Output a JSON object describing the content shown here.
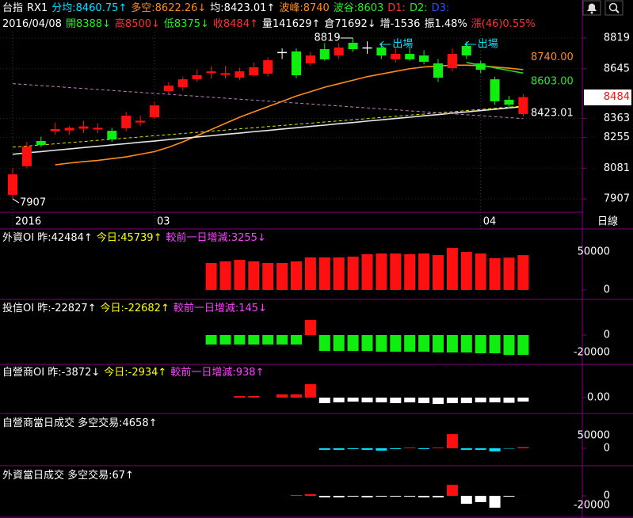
{
  "chart_data": [
    {
      "type": "candlestick",
      "header": [
        [
          {
            "text": "台指",
            "color": "#ffffff"
          },
          {
            "text": "RX1",
            "color": "#ffffff"
          },
          {
            "text": "分均:8460.75↑",
            "color": "#00e5ff"
          },
          {
            "text": "多空:8622.26↓",
            "color": "#ff8c1a"
          },
          {
            "text": "均:8423.01↑",
            "color": "#ffffff"
          },
          {
            "text": "波峰:8740",
            "color": "#ff8c1a"
          },
          {
            "text": "波谷:8603",
            "color": "#22ee22"
          },
          {
            "text": "D1:",
            "color": "#ff3030"
          },
          {
            "text": "D2:",
            "color": "#22ee22"
          },
          {
            "text": "D3:",
            "color": "#3050ff"
          }
        ],
        [
          {
            "text": "2016/04/08",
            "color": "#ffffff"
          },
          {
            "text": "開8388↓",
            "color": "#22ee22"
          },
          {
            "text": "高8500↓",
            "color": "#ff3030"
          },
          {
            "text": "低8375↓",
            "color": "#22ee22"
          },
          {
            "text": "收8484↑",
            "color": "#ff3030"
          },
          {
            "text": "量141629↑",
            "color": "#ffffff"
          },
          {
            "text": "倉71692↓",
            "color": "#ffffff"
          },
          {
            "text": "增-1536",
            "color": "#ffffff"
          },
          {
            "text": "振1.48%",
            "color": "#ffffff"
          },
          {
            "text": "漲(46)0.55%",
            "color": "#ff3030"
          }
        ]
      ],
      "categories": [
        "2016",
        null,
        null,
        null,
        null,
        null,
        null,
        null,
        null,
        null,
        "03",
        null,
        null,
        null,
        null,
        null,
        null,
        null,
        null,
        null,
        null,
        null,
        null,
        null,
        null,
        null,
        null,
        null,
        null,
        null,
        null,
        null,
        null,
        "04",
        null,
        null,
        null
      ],
      "open": [
        7930,
        8092,
        8235,
        8290,
        8295,
        8305,
        8300,
        8293,
        8307,
        8340,
        8370,
        8518,
        8540,
        8585,
        8620,
        8610,
        8594,
        8608,
        8617,
        8738,
        8743,
        8675,
        8756,
        8720,
        8792,
        8765,
        8765,
        8698,
        8729,
        8720,
        8675,
        8648,
        8774,
        8675,
        8585,
        8469,
        8388
      ],
      "high": [
        8081,
        8230,
        8260,
        8340,
        8320,
        8350,
        8335,
        8310,
        8400,
        8380,
        8460,
        8570,
        8600,
        8640,
        8660,
        8660,
        8650,
        8680,
        8710,
        8760,
        8760,
        8740,
        8790,
        8790,
        8819,
        8800,
        8790,
        8760,
        8760,
        8750,
        8700,
        8760,
        8800,
        8690,
        8600,
        8490,
        8500
      ],
      "low": [
        7907,
        8080,
        8200,
        8270,
        8270,
        8280,
        8280,
        8230,
        8290,
        8320,
        8360,
        8500,
        8520,
        8570,
        8590,
        8590,
        8580,
        8600,
        8600,
        8700,
        8590,
        8660,
        8690,
        8700,
        8740,
        8730,
        8700,
        8680,
        8690,
        8670,
        8570,
        8630,
        8700,
        8620,
        8440,
        8420,
        8375
      ],
      "close": [
        8046,
        8204,
        8213,
        8303,
        8310,
        8318,
        8310,
        8244,
        8379,
        8350,
        8437,
        8549,
        8585,
        8608,
        8630,
        8620,
        8630,
        8653,
        8693,
        8740,
        8608,
        8720,
        8698,
        8765,
        8756,
        8766,
        8720,
        8729,
        8698,
        8684,
        8594,
        8729,
        8720,
        8639,
        8460,
        8441,
        8484
      ],
      "up_color": "#ff1010",
      "down_color": "#10ee10",
      "overlays": [
        {
          "color": "#ff8c1a",
          "dashed": false,
          "values": [
            null,
            null,
            null,
            8100,
            8110,
            8118,
            8125,
            8135,
            8145,
            8160,
            8175,
            8200,
            8230,
            8265,
            8300,
            8335,
            8370,
            8400,
            8430,
            8460,
            8490,
            8515,
            8540,
            8560,
            8580,
            8600,
            8615,
            8630,
            8645,
            8655,
            8660,
            8665,
            8665,
            8662,
            8655,
            8648,
            8640
          ]
        },
        {
          "color": "#22dd22",
          "dashed": false,
          "values": [
            null,
            null,
            null,
            null,
            null,
            null,
            null,
            null,
            null,
            null,
            null,
            null,
            null,
            null,
            null,
            null,
            null,
            null,
            null,
            null,
            null,
            null,
            null,
            null,
            null,
            null,
            null,
            null,
            null,
            null,
            null,
            null,
            8680,
            8665,
            8650,
            8635,
            8620
          ]
        },
        {
          "color": "#e8e8e8",
          "dashed": false,
          "values": [
            8160,
            8168,
            8175,
            8183,
            8190,
            8198,
            8205,
            8213,
            8220,
            8228,
            8235,
            8243,
            8250,
            8258,
            8265,
            8273,
            8280,
            8288,
            8295,
            8303,
            8310,
            8318,
            8325,
            8333,
            8340,
            8348,
            8355,
            8363,
            8370,
            8378,
            8385,
            8393,
            8400,
            8408,
            8415,
            8423,
            8430
          ]
        },
        {
          "color": "#e0e000",
          "dashed": true,
          "values": [
            8200,
            8206,
            8213,
            8219,
            8226,
            8232,
            8239,
            8245,
            8252,
            8258,
            8265,
            8271,
            8278,
            8284,
            8291,
            8297,
            8304,
            8310,
            8317,
            8323,
            8330,
            8336,
            8343,
            8349,
            8356,
            8362,
            8369,
            8375,
            8382,
            8388,
            8395,
            8401,
            8408,
            8414,
            8421,
            8427,
            8434
          ]
        },
        {
          "color": "#c080c0",
          "dashed": true,
          "values": [
            8560,
            8555,
            8549,
            8544,
            8538,
            8533,
            8527,
            8522,
            8516,
            8511,
            8505,
            8500,
            8494,
            8489,
            8483,
            8478,
            8472,
            8467,
            8461,
            8456,
            8450,
            8445,
            8439,
            8434,
            8428,
            8423,
            8417,
            8412,
            8406,
            8401,
            8395,
            8390,
            8384,
            8379,
            8373,
            8368,
            8362
          ]
        }
      ],
      "signals": [
        null,
        null,
        null,
        null,
        null,
        null,
        null,
        null,
        null,
        null,
        null,
        null,
        null,
        null,
        null,
        null,
        null,
        null,
        null,
        null,
        null,
        null,
        null,
        null,
        null,
        null,
        "出場",
        null,
        null,
        null,
        null,
        null,
        "出場",
        null,
        null,
        null,
        null
      ],
      "signal_color": "#00e5ff",
      "level_labels": [
        {
          "value": 8740,
          "label": "8740.00",
          "color": "#ff8c1a"
        },
        {
          "value": 8603,
          "label": "8603.00",
          "color": "#22ee22"
        },
        {
          "value": 8423,
          "label": "8423.01",
          "color": "#ffffff"
        }
      ],
      "period": "日線",
      "ylim": [
        7831,
        8855
      ],
      "yticks": [
        8819,
        8645,
        8363,
        8255,
        8081,
        7907
      ],
      "grid": true
    },
    {
      "type": "bar",
      "header": [
        [
          {
            "text": "外資OI 昨:42484↑",
            "color": "#ffffff"
          },
          {
            "text": "今日:45739↑",
            "color": "#ffff00"
          },
          {
            "text": "較前一日增減:3255↓",
            "color": "#ff40ff"
          }
        ]
      ],
      "values": [
        35400,
        37500,
        39600,
        37500,
        35400,
        35400,
        37500,
        42700,
        42700,
        42700,
        43800,
        46900,
        47900,
        47900,
        46900,
        47900,
        45800,
        55200,
        50000,
        47900,
        41700,
        42484,
        45739
      ],
      "up_color": "#ff1010",
      "down_color": "#10ee10",
      "ylim": [
        -12500,
        79200
      ],
      "yticks": [
        50000,
        0
      ]
    },
    {
      "type": "bar",
      "header": [
        [
          {
            "text": "投信OI 昨:-22827↑",
            "color": "#ffffff"
          },
          {
            "text": "今日:-22682↑",
            "color": "#ffff00"
          },
          {
            "text": "較前一日增減:145↓",
            "color": "#ff40ff"
          }
        ]
      ],
      "values": [
        -10900,
        -10900,
        -10900,
        -10900,
        -10900,
        -10900,
        -10900,
        17300,
        -18200,
        -18200,
        -18200,
        -18200,
        -19100,
        -19100,
        -19100,
        -19100,
        -20000,
        -20000,
        -20000,
        -20900,
        -20900,
        -22827,
        -22682
      ],
      "up_color": "#ff1010",
      "down_color": "#10ee10",
      "ylim": [
        -33600,
        40000
      ],
      "yticks": [
        0,
        -20000
      ]
    },
    {
      "type": "bar",
      "header": [
        [
          {
            "text": "自營商OI 昨:-3872↓",
            "color": "#ffffff"
          },
          {
            "text": "今日:-2934↑",
            "color": "#ffff00"
          },
          {
            "text": "較前一日增減:938↑",
            "color": "#ff40ff"
          }
        ]
      ],
      "values": [
        0,
        0,
        1200,
        1200,
        0,
        2400,
        2400,
        10000,
        -4100,
        -3500,
        -3000,
        -3500,
        -3500,
        -4100,
        -3500,
        -4100,
        -4700,
        -4100,
        -4100,
        -3500,
        -3500,
        -3872,
        -2934
      ],
      "up_color": "#ff1010",
      "down_color": "#ffffff",
      "ylim": [
        -11800,
        24200
      ],
      "yticks": [
        {
          "value": 0,
          "label": "0.00"
        }
      ]
    },
    {
      "type": "bar",
      "header": [
        [
          {
            "text": "自營商當日成交 多空交易:4658↑",
            "color": "#ffffff"
          }
        ]
      ],
      "values": [
        0,
        0,
        0,
        0,
        0,
        0,
        0,
        0,
        -6000,
        -6000,
        -3000,
        -6000,
        -9000,
        -3000,
        3000,
        -3000,
        3000,
        56000,
        -6000,
        -6000,
        -12000,
        -1500,
        4658
      ],
      "up_color": "#ff1010",
      "down_color": "#00e5ff",
      "ylim": [
        -68750,
        134400
      ],
      "yticks": [
        50000,
        0
      ]
    },
    {
      "type": "bar",
      "header": [
        [
          {
            "text": "外資當日成交 多空交易:67↑",
            "color": "#ffffff"
          }
        ]
      ],
      "values": [
        0,
        0,
        0,
        0,
        0,
        0,
        1700,
        3300,
        -3300,
        -3300,
        -1700,
        -3300,
        -1700,
        -1700,
        -1700,
        -3300,
        -3300,
        23000,
        -16700,
        -13300,
        -25000,
        -1700,
        67
      ],
      "up_color": "#ff1010",
      "down_color": "#ffffff",
      "ylim": [
        -46700,
        61700
      ],
      "yticks": [
        0,
        -20000
      ]
    }
  ]
}
